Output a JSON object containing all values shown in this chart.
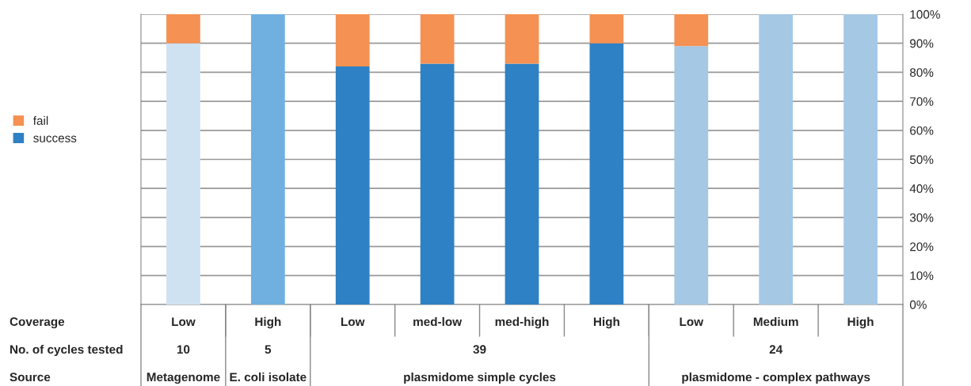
{
  "chart_data": {
    "type": "bar",
    "stacked": true,
    "legend": "left",
    "grid": "y",
    "categories": [
      "Low",
      "High",
      "Low",
      "med-low",
      "med-high",
      "High",
      "Low",
      "Medium",
      "High"
    ],
    "series": [
      {
        "name": "success",
        "color": "#2e81c4",
        "colors": [
          "#cfe2f1",
          "#6fb0e0",
          "#2e81c4",
          "#2e81c4",
          "#2e81c4",
          "#2e81c4",
          "#a5c8e4",
          "#a5c8e4",
          "#a5c8e4"
        ],
        "values": [
          90,
          100,
          82,
          83,
          83,
          90,
          89,
          100,
          100
        ]
      },
      {
        "name": "fail",
        "color": "#f59152",
        "values": [
          10,
          0,
          18,
          17,
          17,
          10,
          11,
          0,
          0
        ]
      }
    ],
    "ylim": [
      0,
      100
    ],
    "yticks": [
      {
        "value": 0,
        "label": "0%"
      },
      {
        "value": 10,
        "label": "10%"
      },
      {
        "value": 20,
        "label": "20%"
      },
      {
        "value": 30,
        "label": "30%"
      },
      {
        "value": 40,
        "label": "40%"
      },
      {
        "value": 50,
        "label": "50%"
      },
      {
        "value": 60,
        "label": "60%"
      },
      {
        "value": 70,
        "label": "70%"
      },
      {
        "value": 80,
        "label": "80%"
      },
      {
        "value": 90,
        "label": "90%"
      },
      {
        "value": 100,
        "label": "100%"
      }
    ],
    "annotations": [
      "Coverage",
      "No. of cycles tested",
      "Source",
      "10",
      "5",
      "39",
      "24",
      "Metagenome",
      "E. coli isolate",
      "plasmidome simple cycles",
      "plasmidome - complex pathways"
    ]
  }
}
